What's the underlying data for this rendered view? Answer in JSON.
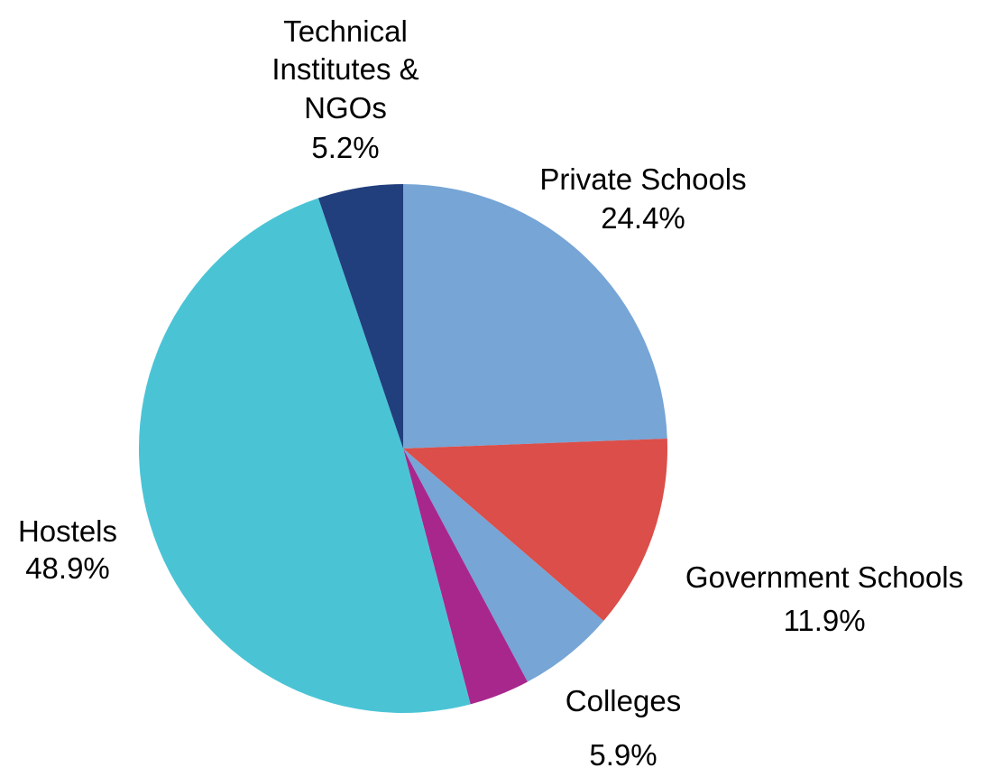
{
  "chart_data": {
    "type": "pie",
    "title": "",
    "start_angle": "12 o'clock",
    "direction": "clockwise",
    "slices": [
      {
        "name": "Private Schools",
        "value": 24.4,
        "value_label": "24.4%",
        "label_lines": [
          "Private Schools",
          "24.4%"
        ],
        "color": "#76A5D6"
      },
      {
        "name": "Government Schools",
        "value": 11.9,
        "value_label": "11.9%",
        "label_lines": [
          "Government Schools",
          "11.9%"
        ],
        "color": "#DB4E49"
      },
      {
        "name": "Colleges",
        "value": 5.9,
        "value_label": "5.9%",
        "label_lines": [
          "Colleges",
          "5.9%"
        ],
        "color": "#76A5D6"
      },
      {
        "name": "",
        "value": 3.7,
        "value_label": "",
        "label_lines": [],
        "color": "#A8278D"
      },
      {
        "name": "Hostels",
        "value": 48.9,
        "value_label": "48.9%",
        "label_lines": [
          "Hostels",
          "48.9%"
        ],
        "color": "#4AC4D5"
      },
      {
        "name": "Technical Institutes & NGOs",
        "value": 5.2,
        "value_label": "5.2%",
        "label_lines": [
          "Technical",
          "Institutes &",
          "NGOs",
          "5.2%"
        ],
        "color": "#213E7D"
      }
    ]
  }
}
